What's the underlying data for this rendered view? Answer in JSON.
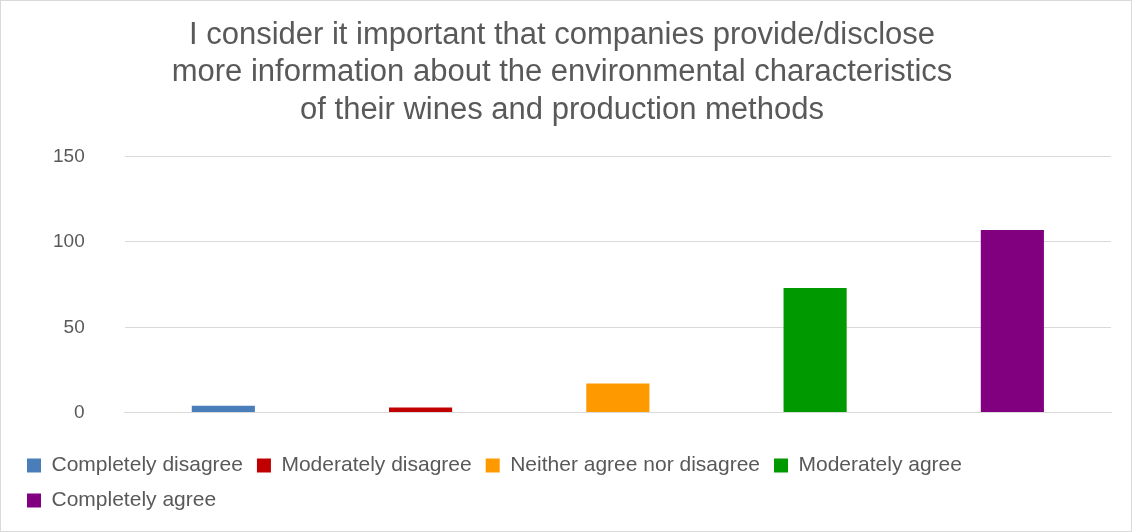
{
  "chart_data": {
    "type": "bar",
    "title": "I consider it important that companies provide/disclose\nmore information about the environmental characteristics\nof their wines and production methods",
    "categories": [
      null,
      null,
      null,
      null,
      null
    ],
    "series": [
      {
        "name": "Completely disagree",
        "color": "#4a7ebb",
        "values": [
          4,
          null,
          null,
          null,
          null
        ]
      },
      {
        "name": "Moderately disagree",
        "color": "#c00000",
        "values": [
          null,
          3,
          null,
          null,
          null
        ]
      },
      {
        "name": "Neither agree nor disagree",
        "color": "#ff9900",
        "values": [
          null,
          null,
          17,
          null,
          null
        ]
      },
      {
        "name": "Moderately agree",
        "color": "#009900",
        "values": [
          null,
          null,
          null,
          73,
          null
        ]
      },
      {
        "name": "Completely agree",
        "color": "#800080",
        "values": [
          null,
          null,
          null,
          null,
          107
        ]
      }
    ],
    "ylim": [
      0,
      150
    ],
    "yticks": [
      0,
      50,
      100,
      150
    ],
    "grid": "y",
    "legend": "bottom"
  }
}
